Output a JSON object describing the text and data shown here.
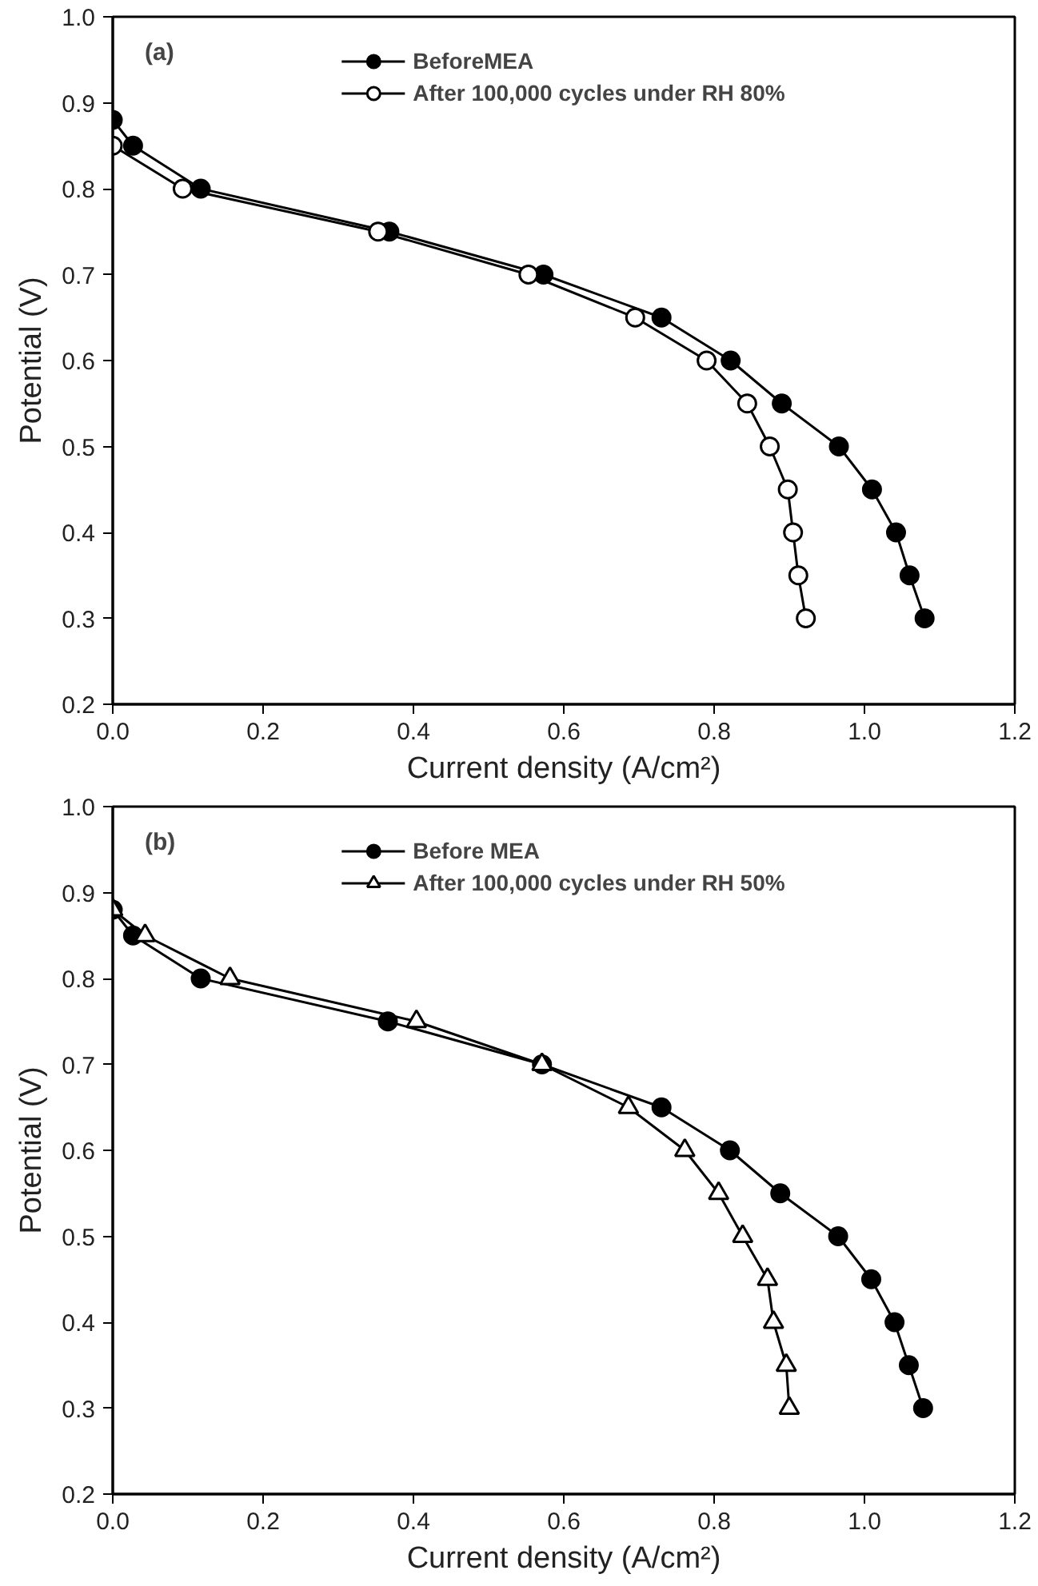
{
  "chart_data": [
    {
      "type": "line",
      "xlabel": "Current density (A/cm²)",
      "ylabel": "Potential (V)",
      "annotations": [
        "(a)"
      ],
      "xlim": [
        0.0,
        1.2
      ],
      "xticks": [
        "0.0",
        0.2,
        0.4,
        0.6,
        0.8,
        "1.0",
        1.2
      ],
      "ylim": [
        0.2,
        1.0
      ],
      "yticks": [
        0.2,
        0.3,
        0.4,
        0.5,
        0.6,
        0.7,
        0.8,
        0.9,
        "1.0"
      ],
      "grid": false,
      "legend": "top",
      "line_style": "solid",
      "series": [
        {
          "name": "BeforeMEA",
          "color": "#000000",
          "marker": "circle",
          "x": [
            0.0,
            0.027,
            0.117,
            0.368,
            0.573,
            0.73,
            0.822,
            0.89,
            0.966,
            1.01,
            1.042,
            1.06,
            1.08
          ],
          "values": [
            0.88,
            0.85,
            0.8,
            0.75,
            0.7,
            0.65,
            0.6,
            0.55,
            0.5,
            0.45,
            0.4,
            0.35,
            0.3
          ]
        },
        {
          "name": "After 100,000 cycles under RH 80%",
          "color": "#ffffff",
          "marker": "circle",
          "x": [
            0.0,
            0.093,
            0.353,
            0.553,
            0.695,
            0.79,
            0.844,
            0.874,
            0.898,
            0.905,
            0.912,
            0.922
          ],
          "values": [
            0.85,
            0.8,
            0.75,
            0.7,
            0.65,
            0.6,
            0.55,
            0.5,
            0.45,
            0.4,
            0.35,
            0.3
          ]
        }
      ]
    },
    {
      "type": "line",
      "xlabel": "Current density (A/cm²)",
      "ylabel": "Potential (V)",
      "annotations": [
        "(b)"
      ],
      "xlim": [
        0.0,
        1.2
      ],
      "xticks": [
        "0.0",
        0.2,
        0.4,
        0.6,
        0.8,
        "1.0",
        1.2
      ],
      "ylim": [
        0.2,
        1.0
      ],
      "yticks": [
        0.2,
        0.3,
        0.4,
        0.5,
        0.6,
        0.7,
        0.8,
        0.9,
        "1.0"
      ],
      "grid": false,
      "legend": "top",
      "line_style": "solid",
      "series": [
        {
          "name": "Before MEA",
          "color": "#000000",
          "marker": "circle",
          "x": [
            0.0,
            0.027,
            0.117,
            0.366,
            0.571,
            0.73,
            0.821,
            0.888,
            0.965,
            1.009,
            1.04,
            1.059,
            1.078
          ],
          "values": [
            0.88,
            0.85,
            0.8,
            0.75,
            0.7,
            0.65,
            0.6,
            0.55,
            0.5,
            0.45,
            0.4,
            0.35,
            0.3
          ]
        },
        {
          "name": "After 100,000 cycles under RH 50%",
          "color": "#ffffff",
          "marker": "triangle",
          "x": [
            0.0,
            0.043,
            0.156,
            0.404,
            0.571,
            0.686,
            0.761,
            0.806,
            0.838,
            0.871,
            0.879,
            0.896,
            0.9
          ],
          "values": [
            0.88,
            0.85,
            0.8,
            0.75,
            0.7,
            0.65,
            0.6,
            0.55,
            0.5,
            0.45,
            0.4,
            0.35,
            0.3
          ]
        }
      ]
    }
  ]
}
